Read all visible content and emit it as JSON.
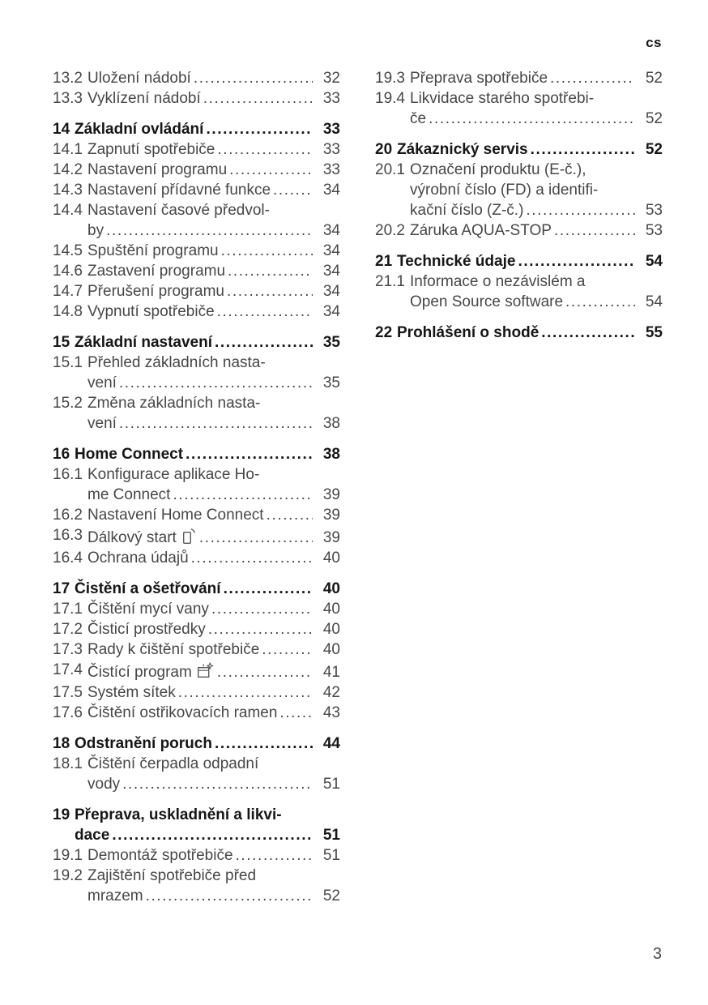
{
  "header": {
    "lang_code": "cs"
  },
  "footer": {
    "page_number": "3"
  },
  "colors": {
    "text_regular": "#474747",
    "text_bold": "#161616",
    "icon": "#5a5a5a",
    "background": "#ffffff"
  },
  "toc": {
    "left_column": [
      {
        "num": "13.2",
        "lines": [
          "Uložení nádobí"
        ],
        "page": "32",
        "bold": false
      },
      {
        "num": "13.3",
        "lines": [
          "Vyklízení nádobí"
        ],
        "page": "33",
        "bold": false
      },
      {
        "num": "14",
        "lines": [
          "Základní ovládání"
        ],
        "page": "33",
        "bold": true
      },
      {
        "num": "14.1",
        "lines": [
          "Zapnutí spotřebiče"
        ],
        "page": "33",
        "bold": false
      },
      {
        "num": "14.2",
        "lines": [
          "Nastavení programu"
        ],
        "page": "33",
        "bold": false
      },
      {
        "num": "14.3",
        "lines": [
          "Nastavení přídavné funkce"
        ],
        "page": "34",
        "bold": false
      },
      {
        "num": "14.4",
        "lines": [
          "Nastavení časové předvol-",
          "by"
        ],
        "page": "34",
        "bold": false
      },
      {
        "num": "14.5",
        "lines": [
          "Spuštění programu"
        ],
        "page": "34",
        "bold": false
      },
      {
        "num": "14.6",
        "lines": [
          "Zastavení programu"
        ],
        "page": "34",
        "bold": false
      },
      {
        "num": "14.7",
        "lines": [
          "Přerušení programu"
        ],
        "page": "34",
        "bold": false
      },
      {
        "num": "14.8",
        "lines": [
          "Vypnutí spotřebiče"
        ],
        "page": "34",
        "bold": false
      },
      {
        "num": "15",
        "lines": [
          "Základní nastavení"
        ],
        "page": "35",
        "bold": true
      },
      {
        "num": "15.1",
        "lines": [
          "Přehled základních nasta-",
          "vení"
        ],
        "page": "35",
        "bold": false
      },
      {
        "num": "15.2",
        "lines": [
          "Změna základních nasta-",
          "vení"
        ],
        "page": "38",
        "bold": false
      },
      {
        "num": "16",
        "lines": [
          "Home Connect"
        ],
        "page": "38",
        "bold": true
      },
      {
        "num": "16.1",
        "lines": [
          "Konfigurace aplikace Ho-",
          "me Connect"
        ],
        "page": "39",
        "bold": false
      },
      {
        "num": "16.2",
        "lines": [
          "Nastavení Home Connect"
        ],
        "page": "39",
        "bold": false
      },
      {
        "num": "16.3",
        "lines": [
          "Dálkový start"
        ],
        "page": "39",
        "bold": false,
        "icon": "remote-start-icon"
      },
      {
        "num": "16.4",
        "lines": [
          "Ochrana údajů"
        ],
        "page": "40",
        "bold": false
      },
      {
        "num": "17",
        "lines": [
          "Čistění a ošetřování"
        ],
        "page": "40",
        "bold": true
      },
      {
        "num": "17.1",
        "lines": [
          "Čištění mycí vany"
        ],
        "page": "40",
        "bold": false
      },
      {
        "num": "17.2",
        "lines": [
          "Čisticí prostředky"
        ],
        "page": "40",
        "bold": false
      },
      {
        "num": "17.3",
        "lines": [
          "Rady k čištění spotřebiče"
        ],
        "page": "40",
        "bold": false
      },
      {
        "num": "17.4",
        "lines": [
          "Čistící program"
        ],
        "page": "41",
        "bold": false,
        "icon": "clean-program-icon"
      },
      {
        "num": "17.5",
        "lines": [
          "Systém sítek"
        ],
        "page": "42",
        "bold": false
      },
      {
        "num": "17.6",
        "lines": [
          "Čištění ostřikovacích ramen"
        ],
        "page": "43",
        "bold": false
      },
      {
        "num": "18",
        "lines": [
          "Odstranění poruch"
        ],
        "page": "44",
        "bold": true
      },
      {
        "num": "18.1",
        "lines": [
          "Čištění čerpadla odpadní",
          "vody"
        ],
        "page": "51",
        "bold": false
      },
      {
        "num": "19",
        "lines": [
          "Přeprava, uskladnění a likvi-",
          "dace"
        ],
        "page": "51",
        "bold": true
      },
      {
        "num": "19.1",
        "lines": [
          "Demontáž spotřebiče"
        ],
        "page": "51",
        "bold": false
      },
      {
        "num": "19.2",
        "lines": [
          "Zajištění spotřebiče před",
          "mrazem"
        ],
        "page": "52",
        "bold": false
      }
    ],
    "right_column": [
      {
        "num": "19.3",
        "lines": [
          "Přeprava spotřebiče"
        ],
        "page": "52",
        "bold": false
      },
      {
        "num": "19.4",
        "lines": [
          "Likvidace starého spotřebi-",
          "če"
        ],
        "page": "52",
        "bold": false
      },
      {
        "num": "20",
        "lines": [
          "Zákaznický servis"
        ],
        "page": "52",
        "bold": true
      },
      {
        "num": "20.1",
        "lines": [
          "Označení produktu (E-č.),",
          "výrobní číslo (FD) a identifi-",
          "kační číslo (Z-č.)"
        ],
        "page": "53",
        "bold": false
      },
      {
        "num": "20.2",
        "lines": [
          "Záruka AQUA-STOP"
        ],
        "page": "53",
        "bold": false
      },
      {
        "num": "21",
        "lines": [
          "Technické údaje"
        ],
        "page": "54",
        "bold": true
      },
      {
        "num": "21.1",
        "lines": [
          "Informace o nezávislém a",
          "Open Source software"
        ],
        "page": "54",
        "bold": false
      },
      {
        "num": "22",
        "lines": [
          "Prohlášení o shodě"
        ],
        "page": "55",
        "bold": true
      }
    ]
  }
}
